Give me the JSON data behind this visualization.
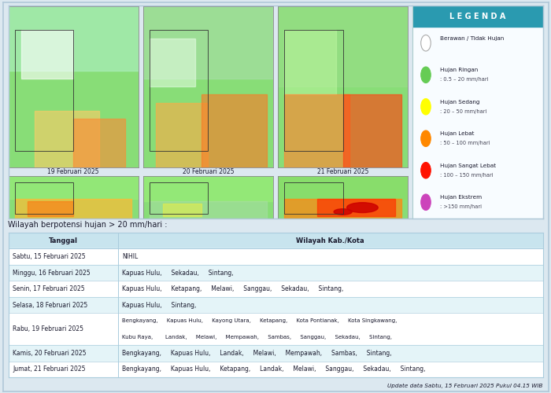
{
  "bg_color": "#dce8f0",
  "panel_bg": "#ffffff",
  "map_outer_border": "#b0c8d8",
  "legend_header_bg": "#2a9ab0",
  "legend_header_text": "#ffffff",
  "legend_border": "#aacccc",
  "table_header_bg": "#c8e4ee",
  "table_alt_bg": "#e4f4f8",
  "table_white_bg": "#ffffff",
  "table_border": "#aaccdd",
  "text_color": "#1a1a2e",
  "subtitle": "Wilayah berpotensi hujan > 20 mm/hari :",
  "footer": "Update data Sabtu, 15 Februari 2025 Pukul 04.15 WIB",
  "row2_labels": [
    "19 Februari 2025",
    "20 Februari 2025",
    "21 Februari 2025"
  ],
  "table_col1_header": "Tanggal",
  "table_col2_header": "Wilayah Kab./Kota",
  "legend_title": "L E G E N D A",
  "legend_items": [
    {
      "label": "Berawan / Tidak Hujan",
      "value": "",
      "color": "#ffffff",
      "edge": "#aaaaaa"
    },
    {
      "label": "Hujan Ringan",
      "value": "0.5 – 20 mm/hari",
      "color": "#66cc55",
      "edge": "none"
    },
    {
      "label": "Hujan Sedang",
      "value": "20 – 50 mm/hari",
      "color": "#ffff00",
      "edge": "none"
    },
    {
      "label": "Hujan Lebat",
      "value": "50 – 100 mm/hari",
      "color": "#ff8800",
      "edge": "none"
    },
    {
      "label": "Hujan Sangat Lebat",
      "value": "100 – 150 mm/hari",
      "color": "#ff1100",
      "edge": "none"
    },
    {
      "label": "Hujan Ekstrem",
      "value": ">150 mm/hari",
      "color": "#cc44bb",
      "edge": "none"
    }
  ],
  "table_rows": [
    {
      "date": "Sabtu, 15 Februari 2025",
      "locs": "NIHIL",
      "alt": false,
      "double": false
    },
    {
      "date": "Minggu, 16 Februari 2025",
      "locs": "Kapuas Hulu,     Sekadau,     Sintang,",
      "alt": true,
      "double": false
    },
    {
      "date": "Senin, 17 Februari 2025",
      "locs": "Kapuas Hulu,     Ketapang,     Melawi,     Sanggau,     Sekadau,     Sintang,",
      "alt": false,
      "double": false
    },
    {
      "date": "Selasa, 18 Februari 2025",
      "locs": "Kapuas Hulu,     Sintang,",
      "alt": true,
      "double": false
    },
    {
      "date": "Rabu, 19 Februari 2025",
      "locs1": "Bengkayang,     Kapuas Hulu,     Kayong Utara,     Ketapang,     Kota Pontianak,     Kota Singkawang,",
      "locs2": "Kubu Raya,       Landak,     Melawi,     Mempawah,     Sambas,     Sanggau,     Sekadau,     Sintang,",
      "alt": false,
      "double": true
    },
    {
      "date": "Kamis, 20 Februari 2025",
      "locs": "Bengkayang,     Kapuas Hulu,     Landak,     Melawi,     Mempawah,     Sambas,     Sintang,",
      "alt": true,
      "double": false
    },
    {
      "date": "Jumat, 21 Februari 2025",
      "locs": "Bengkayang,     Kapuas Hulu,     Ketapang,     Landak,     Melawi,     Sanggau,     Sekadau,     Sintang,",
      "alt": false,
      "double": false
    }
  ]
}
